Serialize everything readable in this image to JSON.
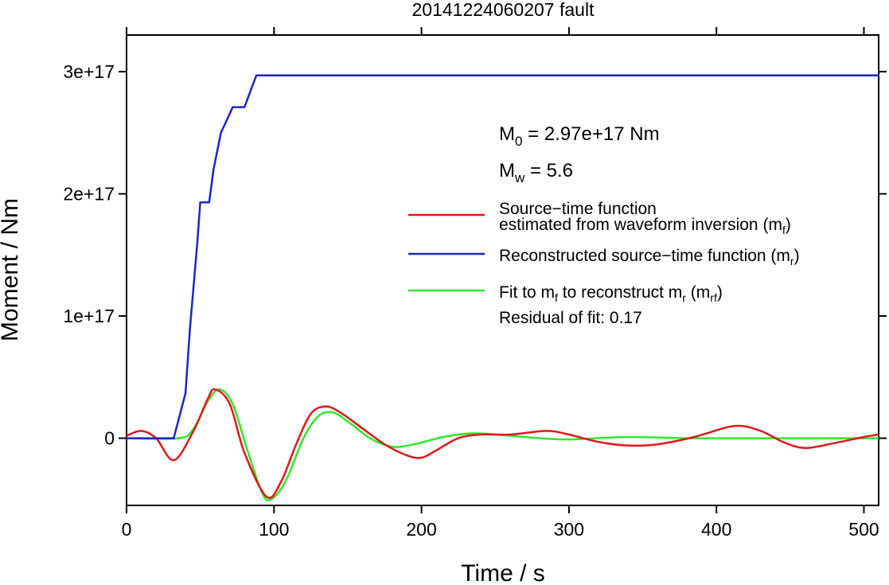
{
  "chart_data": {
    "type": "line",
    "title": "20141224060207 fault",
    "xlabel": "Time / s",
    "ylabel": "Moment / Nm",
    "xlim": [
      0,
      510
    ],
    "ylim": [
      -5.5e+16,
      3.3e+17
    ],
    "x_ticks": [
      {
        "value": 0,
        "label": "0"
      },
      {
        "value": 100,
        "label": "100"
      },
      {
        "value": 200,
        "label": "200"
      },
      {
        "value": 300,
        "label": "300"
      },
      {
        "value": 400,
        "label": "400"
      },
      {
        "value": 500,
        "label": "500"
      }
    ],
    "y_ticks": [
      {
        "value": 0,
        "label": "0"
      },
      {
        "value": 1e+17,
        "label": "1e+17"
      },
      {
        "value": 2e+17,
        "label": "2e+17"
      },
      {
        "value": 3e+17,
        "label": "3e+17"
      }
    ],
    "grid": false,
    "legend_placement": "right",
    "annotations": {
      "m0_prefix": "M",
      "m0_sub": "0",
      "m0_text": " = 2.97e+17 Nm",
      "mw_prefix": "M",
      "mw_sub": "w",
      "mw_text": " = 5.6",
      "residual": "Residual of fit: 0.17"
    },
    "legend": {
      "red_line1": "Source−time function",
      "red_line2": "estimated from waveform inversion (m",
      "red_line2_sub": "f",
      "red_line2_end": ")",
      "blue_text": "Reconstructed source−time function (m",
      "blue_sub": "r",
      "blue_end": ")",
      "green_a": "Fit to m",
      "green_a_sub": "f",
      "green_b": " to reconstruct m",
      "green_b_sub": "r",
      "green_c": " (m",
      "green_c_sub": "rf",
      "green_d": ")"
    },
    "series": [
      {
        "color": "#1d24c6",
        "x": [
          0,
          32,
          40,
          43,
          48,
          50,
          56,
          59,
          64,
          72,
          80,
          88,
          510
        ],
        "y": [
          0,
          0,
          3.7e+16,
          9e+16,
          1.6e+17,
          1.93e+17,
          1.93e+17,
          2.2e+17,
          2.5e+17,
          2.71e+17,
          2.71e+17,
          2.97e+17,
          2.97e+17
        ]
      },
      {
        "color": "#e01818",
        "x": [
          0,
          10,
          20,
          32,
          45,
          55,
          60,
          70,
          80,
          95,
          105,
          115,
          125,
          135,
          145,
          160,
          175,
          190,
          200,
          210,
          225,
          240,
          260,
          285,
          300,
          320,
          340,
          360,
          385,
          412,
          430,
          445,
          460,
          480,
          500,
          510
        ],
        "y": [
          2000000000000000.0,
          6000000000000000.0,
          0,
          -1.8e+16,
          5000000000000000.0,
          3.2e+16,
          4e+16,
          2.8e+16,
          -1.2e+16,
          -4.8e+16,
          -3.5e+16,
          -5000000000000000.0,
          2e+16,
          2.6e+16,
          2.1e+16,
          8000000000000000.0,
          -5000000000000000.0,
          -1.4e+16,
          -1.6e+16,
          -1e+16,
          0,
          3000000000000000.0,
          3000000000000000.0,
          6000000000000000.0,
          3000000000000000.0,
          -3000000000000000.0,
          -6000000000000000.0,
          -5000000000000000.0,
          1000000000000000.0,
          1e+16,
          6000000000000000.0,
          -3000000000000000.0,
          -8000000000000000.0,
          -4000000000000000.0,
          1000000000000000.0,
          3000000000000000.0
        ]
      },
      {
        "color": "#2ee82e",
        "x": [
          0,
          35,
          45,
          55,
          63,
          72,
          82,
          92,
          98,
          108,
          120,
          130,
          140,
          152,
          165,
          180,
          195,
          215,
          235,
          260,
          280,
          300,
          340,
          380,
          420,
          510
        ],
        "y": [
          0,
          0,
          7000000000000000.0,
          3e+16,
          4e+16,
          2.8e+16,
          -1e+16,
          -4.5e+16,
          -5e+16,
          -3.5e+16,
          0,
          1.8e+16,
          2.1e+16,
          1.2e+16,
          0,
          -7000000000000000.0,
          -5000000000000000.0,
          1000000000000000.0,
          4000000000000000.0,
          2000000000000000.0,
          0,
          -1000000000000000.0,
          1000000000000000.0,
          0,
          0,
          0
        ]
      }
    ]
  }
}
